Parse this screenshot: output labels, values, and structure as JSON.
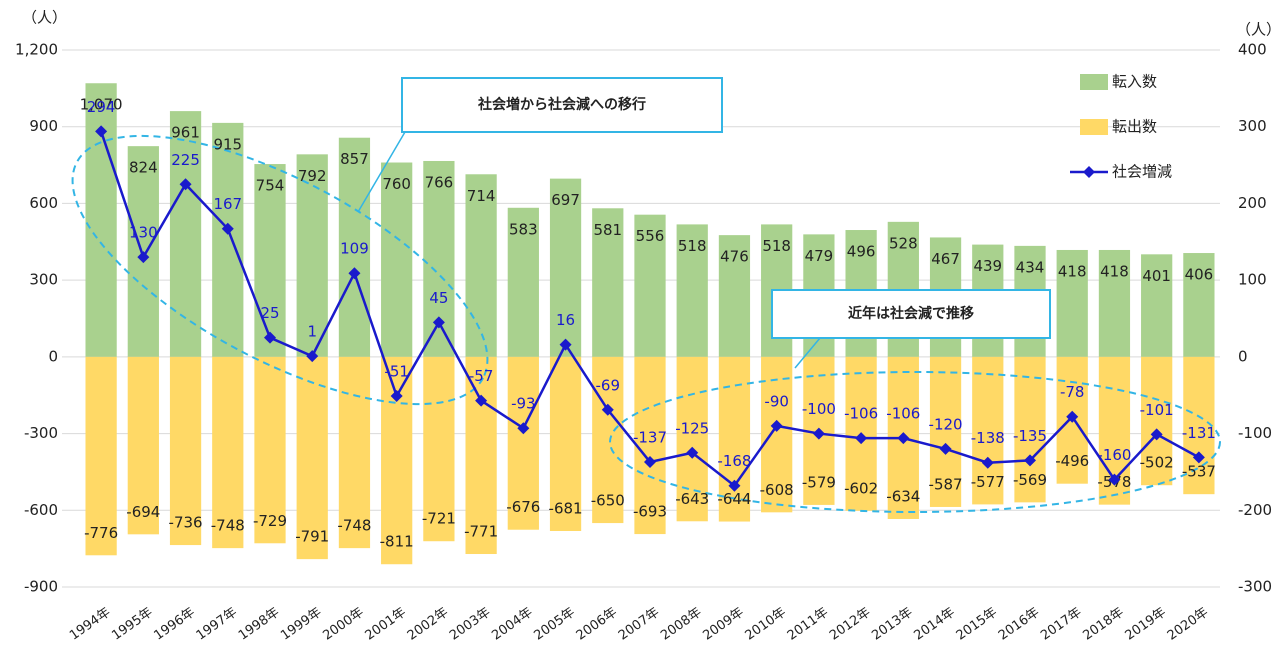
{
  "chart_data": {
    "type": "bar",
    "y_label": "（人）",
    "y2_label": "（人）",
    "categories": [
      "1994年",
      "1995年",
      "1996年",
      "1997年",
      "1998年",
      "1999年",
      "2000年",
      "2001年",
      "2002年",
      "2003年",
      "2004年",
      "2005年",
      "2006年",
      "2007年",
      "2008年",
      "2009年",
      "2010年",
      "2011年",
      "2012年",
      "2013年",
      "2014年",
      "2015年",
      "2016年",
      "2017年",
      "2018年",
      "2019年",
      "2020年"
    ],
    "series": [
      {
        "name": "転入数",
        "color": "#a9d18e",
        "values": [
          1070,
          824,
          961,
          915,
          754,
          792,
          857,
          760,
          766,
          714,
          583,
          697,
          581,
          556,
          518,
          476,
          518,
          479,
          496,
          528,
          467,
          439,
          434,
          418,
          418,
          401,
          406
        ],
        "value_labels": [
          "1,070",
          "824",
          "961",
          "915",
          "754",
          "792",
          "857",
          "760",
          "766",
          "714",
          "583",
          "697",
          "581",
          "556",
          "518",
          "476",
          "518",
          "479",
          "496",
          "528",
          "467",
          "439",
          "434",
          "418",
          "418",
          "401",
          "406"
        ]
      },
      {
        "name": "転出数",
        "color": "#ffd966",
        "values": [
          -776,
          -694,
          -736,
          -748,
          -729,
          -791,
          -748,
          -811,
          -721,
          -771,
          -676,
          -681,
          -650,
          -693,
          -643,
          -644,
          -608,
          -579,
          -602,
          -634,
          -587,
          -577,
          -569,
          -496,
          -578,
          -502,
          -537
        ]
      },
      {
        "name": "社会増減",
        "color": "#1a1acc",
        "type": "line",
        "axis": "y2",
        "values": [
          294,
          130,
          225,
          167,
          25,
          1,
          109,
          -51,
          45,
          -57,
          -93,
          16,
          -69,
          -137,
          -125,
          -168,
          -90,
          -100,
          -106,
          -106,
          -120,
          -138,
          -135,
          -78,
          -160,
          -101,
          -131
        ]
      }
    ],
    "ylim": [
      -900,
      1200
    ],
    "yticks": [
      -900,
      -600,
      -300,
      0,
      300,
      600,
      900,
      {
        "value": 1200,
        "label": "1,200"
      }
    ],
    "y2lim": [
      -300,
      400
    ],
    "y2ticks": [
      -300,
      -200,
      -100,
      0,
      100,
      200,
      300,
      400
    ],
    "grid": true,
    "annotations": [
      "社会増から社会減への移行",
      "近年は社会減で推移"
    ]
  }
}
